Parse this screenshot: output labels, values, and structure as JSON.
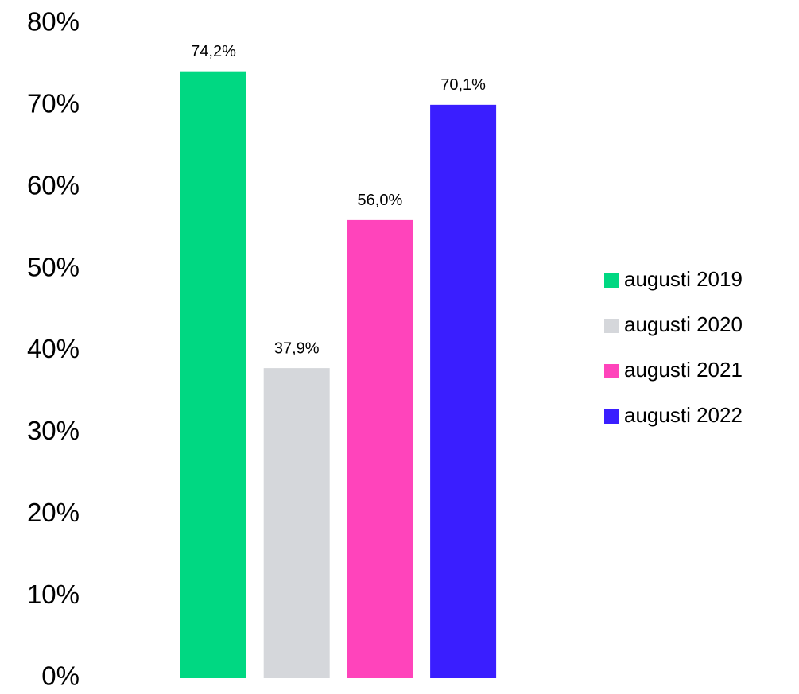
{
  "chart_data": {
    "type": "bar",
    "categories": [
      null
    ],
    "series": [
      {
        "name": "augusti 2019",
        "color": "#00d882",
        "values": [
          74.2
        ],
        "value_labels": [
          "74,2%"
        ]
      },
      {
        "name": "augusti 2020",
        "color": "#d5d7db",
        "values": [
          37.9
        ],
        "value_labels": [
          "37,9%"
        ]
      },
      {
        "name": "augusti 2021",
        "color": "#ff44bb",
        "values": [
          56.0
        ],
        "value_labels": [
          "56,0%"
        ]
      },
      {
        "name": "augusti 2022",
        "color": "#3a1eff",
        "values": [
          70.1
        ],
        "value_labels": [
          "70,1%"
        ]
      }
    ],
    "ylim": [
      0,
      80
    ],
    "yticks": [
      {
        "value": 0,
        "label": "0%"
      },
      {
        "value": 10,
        "label": "10%"
      },
      {
        "value": 20,
        "label": "20%"
      },
      {
        "value": 30,
        "label": "30%"
      },
      {
        "value": 40,
        "label": "40%"
      },
      {
        "value": 50,
        "label": "50%"
      },
      {
        "value": 60,
        "label": "60%"
      },
      {
        "value": 70,
        "label": "70%"
      },
      {
        "value": 80,
        "label": "80%"
      }
    ],
    "grid": false,
    "legend": "right"
  }
}
